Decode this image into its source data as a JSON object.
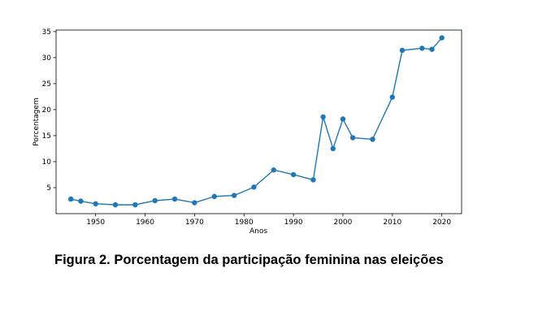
{
  "chart_data": {
    "type": "line",
    "title": "",
    "xlabel": "Anos",
    "ylabel": "Porcentagem",
    "xlim": [
      1942,
      2024
    ],
    "ylim": [
      0,
      35.3
    ],
    "x_ticks": [
      1950,
      1960,
      1970,
      1980,
      1990,
      2000,
      2010,
      2020
    ],
    "y_ticks": [
      5,
      10,
      15,
      20,
      25,
      30,
      35
    ],
    "grid": false,
    "legend": "none",
    "series": [
      {
        "color": "#1f77b4",
        "points": [
          {
            "x": 1945,
            "y": 2.8
          },
          {
            "x": 1947,
            "y": 2.4
          },
          {
            "x": 1950,
            "y": 1.9
          },
          {
            "x": 1954,
            "y": 1.7
          },
          {
            "x": 1958,
            "y": 1.7
          },
          {
            "x": 1962,
            "y": 2.5
          },
          {
            "x": 1966,
            "y": 2.8
          },
          {
            "x": 1970,
            "y": 2.1
          },
          {
            "x": 1974,
            "y": 3.3
          },
          {
            "x": 1978,
            "y": 3.5
          },
          {
            "x": 1982,
            "y": 5.1
          },
          {
            "x": 1986,
            "y": 8.4
          },
          {
            "x": 1990,
            "y": 7.5
          },
          {
            "x": 1994,
            "y": 6.5
          },
          {
            "x": 1996,
            "y": 18.6
          },
          {
            "x": 1998,
            "y": 12.5
          },
          {
            "x": 2000,
            "y": 18.2
          },
          {
            "x": 2002,
            "y": 14.6
          },
          {
            "x": 2006,
            "y": 14.3
          },
          {
            "x": 2010,
            "y": 22.4
          },
          {
            "x": 2012,
            "y": 31.4
          },
          {
            "x": 2016,
            "y": 31.8
          },
          {
            "x": 2018,
            "y": 31.6
          },
          {
            "x": 2020,
            "y": 33.8
          }
        ]
      }
    ]
  },
  "caption": "Figura 2. Porcentagem da participação feminina nas eleições"
}
